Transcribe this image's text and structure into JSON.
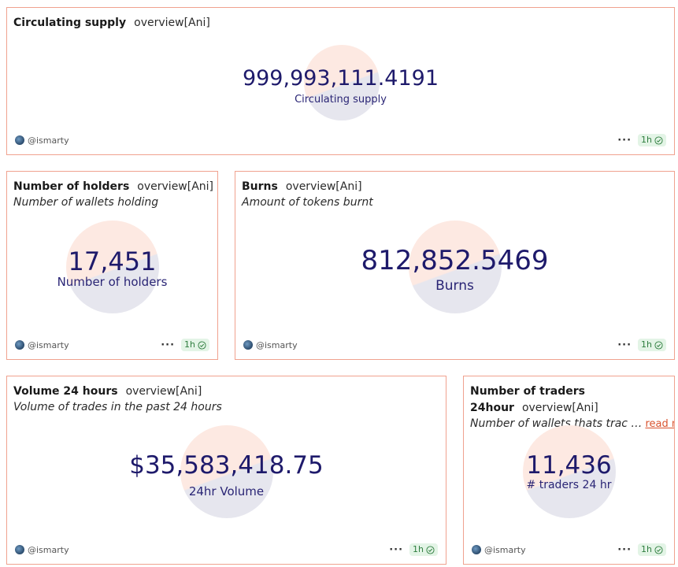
{
  "author": "@ismarty",
  "refresh": "1h",
  "more_glyph": "···",
  "cards": {
    "circulating": {
      "title": "Circulating supply",
      "query": "overview[Ani]",
      "value": "999,993,111.4191",
      "value_label": "Circulating supply"
    },
    "holders": {
      "title": "Number of holders",
      "query": "overview[Ani]",
      "description": "Number of wallets holding",
      "value": "17,451",
      "value_label": "Number of holders"
    },
    "burns": {
      "title": "Burns",
      "query": "overview[Ani]",
      "description": "Amount of tokens burnt",
      "value": "812,852.5469",
      "value_label": "Burns"
    },
    "volume": {
      "title": "Volume 24 hours",
      "query": "overview[Ani]",
      "description": "Volume of trades in the past 24 hours",
      "value": "$35,583,418.75",
      "value_label": "24hr Volume"
    },
    "traders": {
      "title": "Number of traders",
      "title_line2": "24hour",
      "query": "overview[Ani]",
      "description": "Number of wallets thats trac …",
      "read_more": "read more",
      "value": "11,436",
      "value_label": "# traders 24 hr"
    }
  },
  "icons": {
    "avatar": "avatar-icon",
    "more": "more-icon",
    "check": "check-circle-icon"
  },
  "colors": {
    "value": "#1e1a6b",
    "border": "#f0a28f",
    "circle_top": "#fde9e2",
    "circle_bottom": "#e6e6ee",
    "badge_bg": "#e3f4e6",
    "badge_text": "#2e7d3e",
    "read_more": "#d9532e"
  }
}
